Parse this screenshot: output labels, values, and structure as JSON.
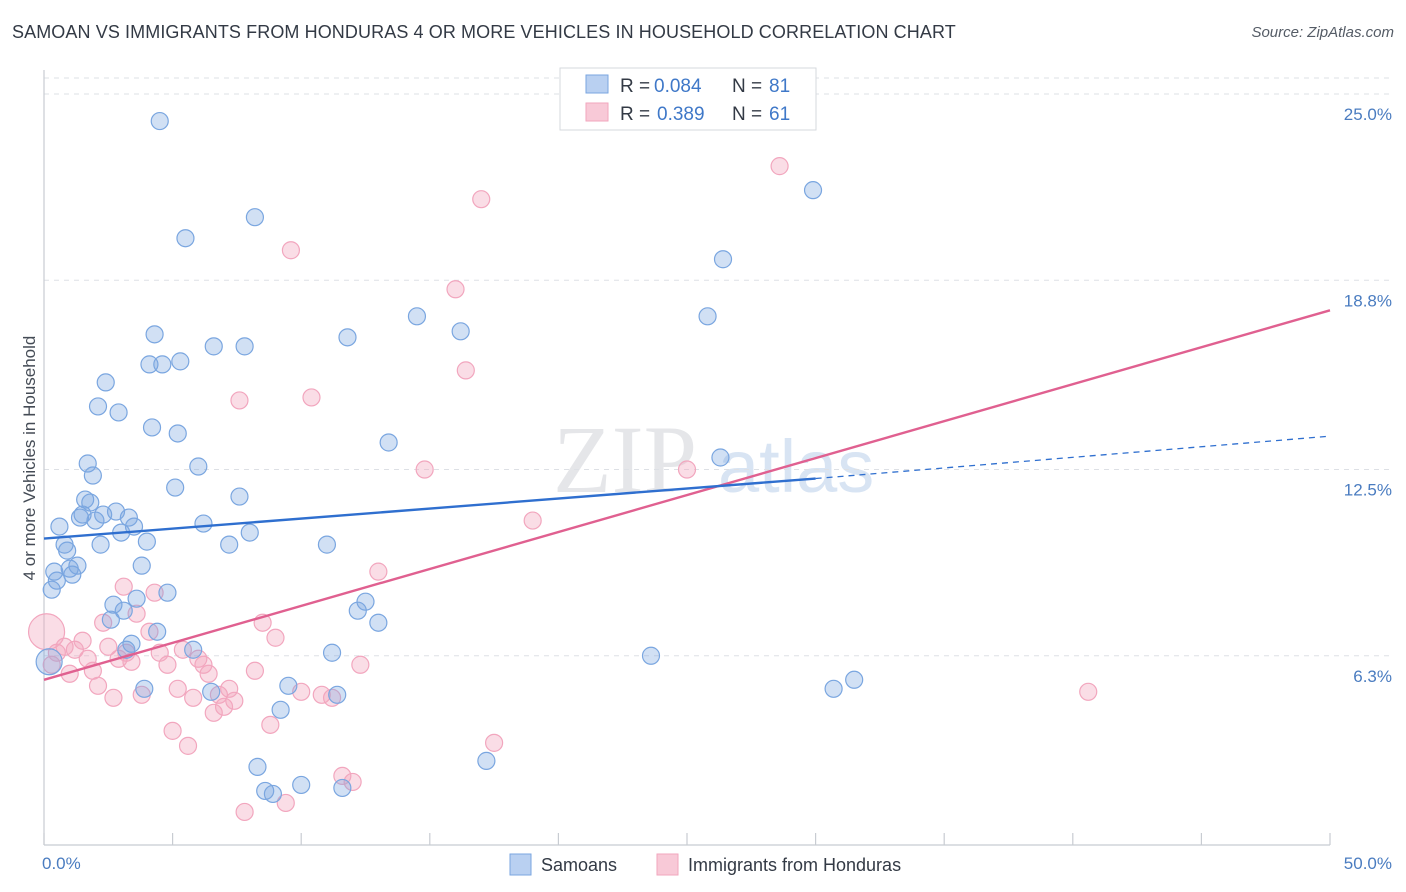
{
  "title": "SAMOAN VS IMMIGRANTS FROM HONDURAS 4 OR MORE VEHICLES IN HOUSEHOLD CORRELATION CHART",
  "source": "Source: ZipAtlas.com",
  "watermark": {
    "zip": "ZIP",
    "atlas": "atlas"
  },
  "legend_top": {
    "rows": [
      {
        "r_label": "R =",
        "r_value": "0.084",
        "n_label": "N =",
        "n_value": "81"
      },
      {
        "r_label": "R =",
        "r_value": "0.389",
        "n_label": "N =",
        "n_value": "61"
      }
    ]
  },
  "legend_bottom": {
    "items": [
      "Samoans",
      "Immigrants from Honduras"
    ]
  },
  "chart_data": {
    "type": "scatter",
    "ylabel": "4 or more Vehicles in Household",
    "xlabel": "",
    "xlim": [
      0,
      50
    ],
    "ylim": [
      0,
      25.8
    ],
    "x_tick_labels": [
      {
        "value": 0,
        "label": "0.0%"
      },
      {
        "value": 50,
        "label": "50.0%"
      }
    ],
    "y_tick_labels": [
      {
        "value": 6.3,
        "label": "6.3%"
      },
      {
        "value": 12.5,
        "label": "12.5%"
      },
      {
        "value": 18.8,
        "label": "18.8%"
      },
      {
        "value": 25.0,
        "label": "25.0%"
      }
    ],
    "grid": true,
    "legend_position": "top-center",
    "colors": {
      "samoans": "#7aa6e0",
      "samoans_line": "#2f6fcf",
      "honduras": "#f2a6be",
      "honduras_line": "#e06090"
    },
    "series": [
      {
        "name": "Samoans",
        "r": 0.084,
        "n": 81,
        "trend": {
          "x0": 0,
          "y0": 10.2,
          "x1": 30,
          "y1": 12.2,
          "dashed_to_x": 50,
          "dashed_to_y": 13.6
        },
        "points": [
          [
            0.2,
            6.1
          ],
          [
            0.3,
            8.5
          ],
          [
            0.4,
            9.1
          ],
          [
            0.5,
            8.8
          ],
          [
            0.6,
            10.6
          ],
          [
            0.8,
            10.0
          ],
          [
            0.9,
            9.8
          ],
          [
            1.0,
            9.2
          ],
          [
            1.1,
            9.0
          ],
          [
            1.3,
            9.3
          ],
          [
            1.4,
            10.9
          ],
          [
            1.5,
            11.0
          ],
          [
            1.6,
            11.5
          ],
          [
            1.7,
            12.7
          ],
          [
            1.8,
            11.4
          ],
          [
            1.9,
            12.3
          ],
          [
            2.0,
            10.8
          ],
          [
            2.1,
            14.6
          ],
          [
            2.2,
            10.0
          ],
          [
            2.3,
            11.0
          ],
          [
            2.4,
            15.4
          ],
          [
            2.6,
            7.5
          ],
          [
            2.7,
            8.0
          ],
          [
            2.8,
            11.1
          ],
          [
            2.9,
            14.4
          ],
          [
            3.0,
            10.4
          ],
          [
            3.1,
            7.8
          ],
          [
            3.2,
            6.5
          ],
          [
            3.3,
            10.9
          ],
          [
            3.4,
            6.7
          ],
          [
            3.5,
            10.6
          ],
          [
            3.6,
            8.2
          ],
          [
            3.8,
            9.3
          ],
          [
            3.9,
            5.2
          ],
          [
            4.0,
            10.1
          ],
          [
            4.1,
            16.0
          ],
          [
            4.2,
            13.9
          ],
          [
            4.3,
            17.0
          ],
          [
            4.4,
            7.1
          ],
          [
            4.5,
            24.1
          ],
          [
            4.6,
            16.0
          ],
          [
            4.8,
            8.4
          ],
          [
            5.1,
            11.9
          ],
          [
            5.2,
            13.7
          ],
          [
            5.3,
            16.1
          ],
          [
            5.5,
            20.2
          ],
          [
            5.8,
            6.5
          ],
          [
            6.0,
            12.6
          ],
          [
            6.2,
            10.7
          ],
          [
            6.5,
            5.1
          ],
          [
            6.6,
            16.6
          ],
          [
            7.2,
            10.0
          ],
          [
            7.6,
            11.6
          ],
          [
            7.8,
            16.6
          ],
          [
            8.0,
            10.4
          ],
          [
            8.2,
            20.9
          ],
          [
            8.3,
            2.6
          ],
          [
            8.6,
            1.8
          ],
          [
            8.9,
            1.7
          ],
          [
            9.2,
            4.5
          ],
          [
            9.5,
            5.3
          ],
          [
            10.0,
            2.0
          ],
          [
            11.0,
            10.0
          ],
          [
            11.2,
            6.4
          ],
          [
            11.4,
            5.0
          ],
          [
            11.6,
            1.9
          ],
          [
            11.8,
            16.9
          ],
          [
            12.2,
            7.8
          ],
          [
            12.5,
            8.1
          ],
          [
            13.0,
            7.4
          ],
          [
            13.4,
            13.4
          ],
          [
            14.5,
            17.6
          ],
          [
            16.2,
            17.1
          ],
          [
            17.2,
            2.8
          ],
          [
            23.6,
            6.3
          ],
          [
            26.3,
            12.9
          ],
          [
            26.4,
            19.5
          ],
          [
            25.8,
            17.6
          ],
          [
            29.9,
            21.8
          ],
          [
            30.7,
            5.2
          ],
          [
            31.5,
            5.5
          ]
        ]
      },
      {
        "name": "Immigrants from Honduras",
        "r": 0.389,
        "n": 61,
        "trend": {
          "x0": 0,
          "y0": 5.5,
          "x1": 50,
          "y1": 17.8
        },
        "points": [
          [
            0.1,
            7.1
          ],
          [
            0.3,
            6.0
          ],
          [
            0.5,
            6.4
          ],
          [
            0.8,
            6.6
          ],
          [
            1.0,
            5.7
          ],
          [
            1.2,
            6.5
          ],
          [
            1.5,
            6.8
          ],
          [
            1.7,
            6.2
          ],
          [
            1.9,
            5.8
          ],
          [
            2.1,
            5.3
          ],
          [
            2.3,
            7.4
          ],
          [
            2.5,
            6.6
          ],
          [
            2.7,
            4.9
          ],
          [
            2.9,
            6.2
          ],
          [
            3.1,
            8.6
          ],
          [
            3.2,
            6.4
          ],
          [
            3.4,
            6.1
          ],
          [
            3.6,
            7.7
          ],
          [
            3.8,
            5.0
          ],
          [
            4.1,
            7.1
          ],
          [
            4.3,
            8.4
          ],
          [
            4.5,
            6.4
          ],
          [
            4.8,
            6.0
          ],
          [
            5.0,
            3.8
          ],
          [
            5.2,
            5.2
          ],
          [
            5.4,
            6.5
          ],
          [
            5.6,
            3.3
          ],
          [
            5.8,
            4.9
          ],
          [
            6.0,
            6.2
          ],
          [
            6.2,
            6.0
          ],
          [
            6.4,
            5.7
          ],
          [
            6.6,
            4.4
          ],
          [
            6.8,
            5.0
          ],
          [
            7.0,
            4.6
          ],
          [
            7.2,
            5.2
          ],
          [
            7.4,
            4.8
          ],
          [
            7.6,
            14.8
          ],
          [
            7.8,
            1.1
          ],
          [
            8.2,
            5.8
          ],
          [
            8.5,
            7.4
          ],
          [
            8.8,
            4.0
          ],
          [
            9.0,
            6.9
          ],
          [
            9.4,
            1.4
          ],
          [
            9.6,
            19.8
          ],
          [
            10.0,
            5.1
          ],
          [
            10.4,
            14.9
          ],
          [
            10.8,
            5.0
          ],
          [
            11.2,
            4.9
          ],
          [
            11.6,
            2.3
          ],
          [
            12.0,
            2.1
          ],
          [
            12.3,
            6.0
          ],
          [
            13.0,
            9.1
          ],
          [
            14.8,
            12.5
          ],
          [
            16.0,
            18.5
          ],
          [
            16.4,
            15.8
          ],
          [
            17.0,
            21.5
          ],
          [
            17.5,
            3.4
          ],
          [
            19.0,
            10.8
          ],
          [
            25.0,
            12.5
          ],
          [
            28.6,
            22.6
          ],
          [
            40.6,
            5.1
          ]
        ]
      }
    ]
  }
}
